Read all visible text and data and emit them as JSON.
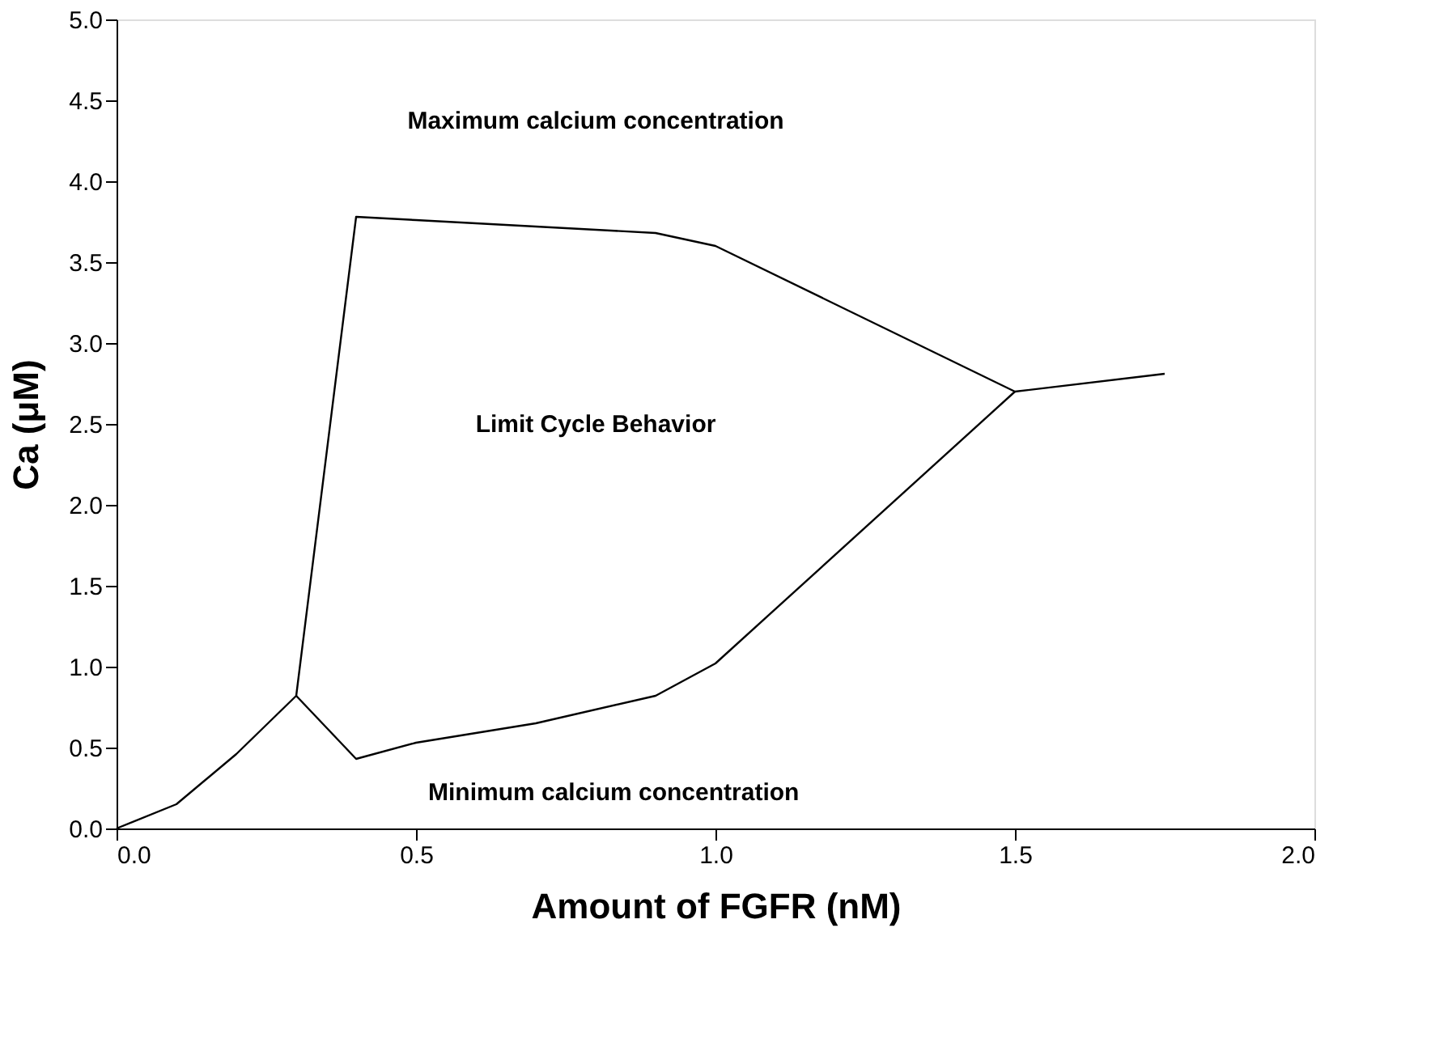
{
  "chart_data": {
    "type": "line",
    "xlabel": "Amount of FGFR (nM)",
    "ylabel": "Ca (μM)",
    "series": [
      {
        "color": "#000000",
        "x": [
          0.0,
          0.1,
          0.2,
          0.3
        ],
        "values": [
          0.0,
          0.15,
          0.46,
          0.82
        ]
      },
      {
        "color": "#000000",
        "x": [
          0.3,
          0.4,
          0.5,
          0.7,
          0.9,
          1.0,
          1.5,
          1.75
        ],
        "values": [
          0.82,
          3.78,
          3.76,
          3.72,
          3.68,
          3.6,
          2.7,
          2.81
        ]
      },
      {
        "color": "#000000",
        "x": [
          0.3,
          0.4,
          0.5,
          0.7,
          0.9,
          1.0,
          1.5
        ],
        "values": [
          0.82,
          0.43,
          0.53,
          0.65,
          0.82,
          1.02,
          2.7
        ]
      }
    ],
    "xlim": [
      0.0,
      2.0
    ],
    "ylim": [
      0.0,
      5.0
    ],
    "xticks": [
      {
        "value": 0,
        "label": "0.0"
      },
      {
        "value": 0.5,
        "label": "0.5"
      },
      {
        "value": 1,
        "label": "1.0"
      },
      {
        "value": 1.5,
        "label": "1.5"
      },
      {
        "value": 2,
        "label": "2.0"
      }
    ],
    "yticks": [
      {
        "value": 0,
        "label": "0.0"
      },
      {
        "value": 0.5,
        "label": "0.5"
      },
      {
        "value": 1,
        "label": "1.0"
      },
      {
        "value": 1.5,
        "label": "1.5"
      },
      {
        "value": 2,
        "label": "2.0"
      },
      {
        "value": 2.5,
        "label": "2.5"
      },
      {
        "value": 3,
        "label": "3.0"
      },
      {
        "value": 3.5,
        "label": "3.5"
      },
      {
        "value": 4,
        "label": "4.0"
      },
      {
        "value": 4.5,
        "label": "4.5"
      },
      {
        "value": 5,
        "label": "5.0"
      }
    ],
    "annotations": [
      "Maximum calcium concentration",
      "Limit Cycle Behavior",
      "Minimum calcium concentration"
    ],
    "grid": false,
    "marker": "none",
    "line_style": "solid"
  }
}
